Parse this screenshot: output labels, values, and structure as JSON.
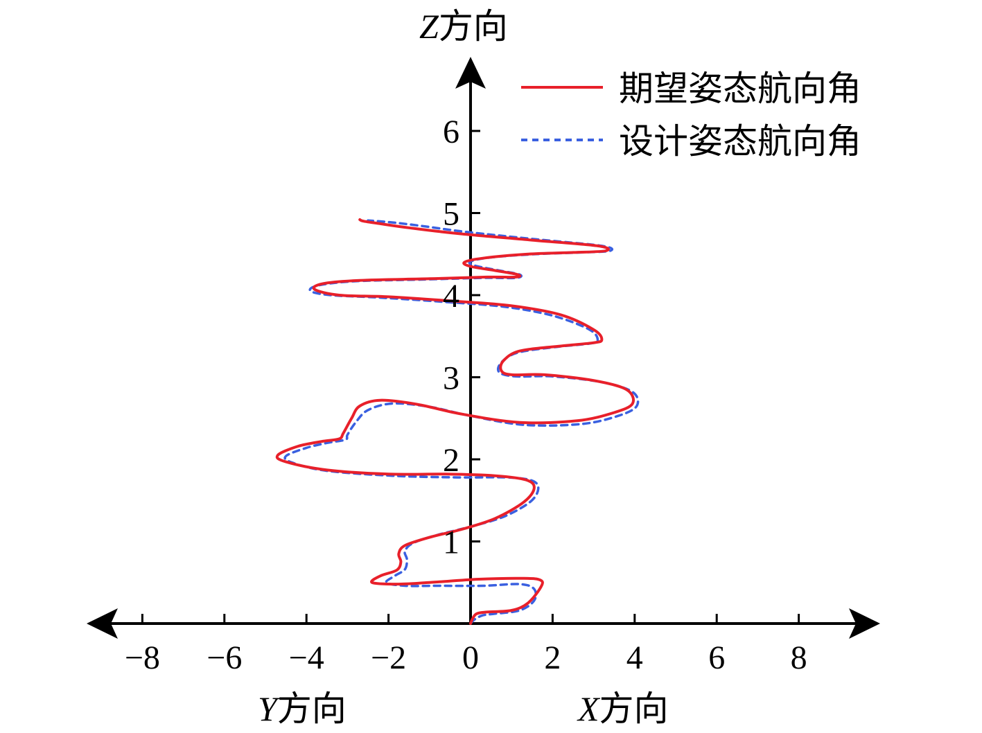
{
  "chart_data": {
    "type": "line",
    "xlim": [
      -9,
      9
    ],
    "ylim": [
      0,
      6.5
    ],
    "x_ticks": [
      -8,
      -6,
      -4,
      -2,
      0,
      2,
      4,
      6,
      8
    ],
    "x_tick_labels": [
      "−8",
      "−6",
      "−4",
      "−2",
      "0",
      "2",
      "4",
      "6",
      "8"
    ],
    "y_ticks": [
      1,
      2,
      3,
      4,
      5,
      6
    ],
    "y_tick_labels": [
      "1",
      "2",
      "3",
      "4",
      "5",
      "6"
    ],
    "z_axis_label": {
      "var": "Z",
      "text": "方向"
    },
    "left_axis_label": {
      "var": "Y",
      "text": "方向"
    },
    "right_axis_label": {
      "var": "X",
      "text": "方向"
    },
    "legend": {
      "placement": "top-right"
    },
    "grid": false,
    "series": [
      {
        "name": "期望姿态航向角",
        "color": "#e8202a",
        "dash": "solid",
        "points": [
          [
            0.0,
            0.0
          ],
          [
            0.05,
            0.06
          ],
          [
            0.15,
            0.12
          ],
          [
            0.4,
            0.14
          ],
          [
            1.0,
            0.16
          ],
          [
            1.4,
            0.25
          ],
          [
            1.72,
            0.45
          ],
          [
            1.7,
            0.53
          ],
          [
            1.3,
            0.55
          ],
          [
            0.2,
            0.54
          ],
          [
            -1.0,
            0.5
          ],
          [
            -1.8,
            0.48
          ],
          [
            -2.4,
            0.5
          ],
          [
            -2.2,
            0.58
          ],
          [
            -1.8,
            0.65
          ],
          [
            -1.7,
            0.75
          ],
          [
            -1.75,
            0.85
          ],
          [
            -1.6,
            0.95
          ],
          [
            -1.0,
            1.05
          ],
          [
            -0.2,
            1.15
          ],
          [
            0.6,
            1.28
          ],
          [
            1.3,
            1.48
          ],
          [
            1.55,
            1.65
          ],
          [
            1.35,
            1.75
          ],
          [
            0.6,
            1.8
          ],
          [
            -0.6,
            1.82
          ],
          [
            -2.0,
            1.82
          ],
          [
            -3.5,
            1.87
          ],
          [
            -4.5,
            1.97
          ],
          [
            -4.7,
            2.05
          ],
          [
            -4.2,
            2.16
          ],
          [
            -3.6,
            2.22
          ],
          [
            -3.2,
            2.25
          ],
          [
            -3.1,
            2.32
          ],
          [
            -2.9,
            2.5
          ],
          [
            -2.7,
            2.65
          ],
          [
            -2.2,
            2.72
          ],
          [
            -1.3,
            2.67
          ],
          [
            -0.2,
            2.55
          ],
          [
            1.2,
            2.45
          ],
          [
            2.6,
            2.47
          ],
          [
            3.5,
            2.57
          ],
          [
            3.95,
            2.68
          ],
          [
            3.8,
            2.85
          ],
          [
            3.0,
            2.96
          ],
          [
            1.8,
            3.03
          ],
          [
            1.0,
            3.03
          ],
          [
            0.75,
            3.08
          ],
          [
            0.8,
            3.2
          ],
          [
            1.2,
            3.32
          ],
          [
            2.2,
            3.38
          ],
          [
            3.0,
            3.42
          ],
          [
            3.2,
            3.46
          ],
          [
            3.0,
            3.58
          ],
          [
            2.2,
            3.76
          ],
          [
            1.0,
            3.87
          ],
          [
            -0.5,
            3.93
          ],
          [
            -2.0,
            3.98
          ],
          [
            -3.2,
            4.0
          ],
          [
            -3.8,
            4.07
          ],
          [
            -3.6,
            4.14
          ],
          [
            -2.7,
            4.18
          ],
          [
            -1.0,
            4.2
          ],
          [
            0.4,
            4.22
          ],
          [
            1.1,
            4.22
          ],
          [
            1.15,
            4.25
          ],
          [
            0.6,
            4.3
          ],
          [
            0.0,
            4.35
          ],
          [
            -0.15,
            4.4
          ],
          [
            0.3,
            4.45
          ],
          [
            1.4,
            4.5
          ],
          [
            2.5,
            4.52
          ],
          [
            3.3,
            4.54
          ],
          [
            3.1,
            4.6
          ],
          [
            1.5,
            4.67
          ],
          [
            -0.3,
            4.75
          ],
          [
            -1.5,
            4.82
          ],
          [
            -2.2,
            4.87
          ],
          [
            -2.6,
            4.9
          ],
          [
            -2.7,
            4.92
          ]
        ]
      },
      {
        "name": "设计姿态航向角",
        "color": "#3a60e0",
        "dash": "dotted",
        "points": [
          [
            0.0,
            0.0
          ],
          [
            0.1,
            0.05
          ],
          [
            0.3,
            0.1
          ],
          [
            0.6,
            0.12
          ],
          [
            1.2,
            0.16
          ],
          [
            1.55,
            0.28
          ],
          [
            1.55,
            0.42
          ],
          [
            1.2,
            0.48
          ],
          [
            0.3,
            0.46
          ],
          [
            -0.8,
            0.46
          ],
          [
            -1.6,
            0.46
          ],
          [
            -2.05,
            0.5
          ],
          [
            -1.85,
            0.58
          ],
          [
            -1.6,
            0.66
          ],
          [
            -1.55,
            0.78
          ],
          [
            -1.6,
            0.88
          ],
          [
            -1.4,
            0.98
          ],
          [
            -0.8,
            1.08
          ],
          [
            0.0,
            1.18
          ],
          [
            0.8,
            1.3
          ],
          [
            1.45,
            1.48
          ],
          [
            1.65,
            1.64
          ],
          [
            1.5,
            1.74
          ],
          [
            0.9,
            1.78
          ],
          [
            -0.3,
            1.78
          ],
          [
            -1.9,
            1.8
          ],
          [
            -3.5,
            1.86
          ],
          [
            -4.35,
            1.96
          ],
          [
            -4.5,
            2.04
          ],
          [
            -4.0,
            2.14
          ],
          [
            -3.5,
            2.2
          ],
          [
            -3.05,
            2.24
          ],
          [
            -3.0,
            2.3
          ],
          [
            -2.8,
            2.45
          ],
          [
            -2.5,
            2.6
          ],
          [
            -1.9,
            2.68
          ],
          [
            -1.0,
            2.64
          ],
          [
            0.0,
            2.53
          ],
          [
            1.3,
            2.42
          ],
          [
            2.7,
            2.43
          ],
          [
            3.6,
            2.53
          ],
          [
            4.05,
            2.65
          ],
          [
            3.95,
            2.82
          ],
          [
            3.2,
            2.94
          ],
          [
            2.0,
            3.01
          ],
          [
            1.1,
            3.01
          ],
          [
            0.7,
            3.06
          ],
          [
            0.75,
            3.18
          ],
          [
            1.15,
            3.3
          ],
          [
            2.1,
            3.37
          ],
          [
            2.9,
            3.41
          ],
          [
            3.1,
            3.45
          ],
          [
            2.9,
            3.58
          ],
          [
            2.0,
            3.75
          ],
          [
            0.8,
            3.86
          ],
          [
            -0.7,
            3.92
          ],
          [
            -2.2,
            3.97
          ],
          [
            -3.4,
            4.0
          ],
          [
            -3.9,
            4.05
          ],
          [
            -3.7,
            4.12
          ],
          [
            -2.8,
            4.17
          ],
          [
            -1.2,
            4.19
          ],
          [
            0.3,
            4.21
          ],
          [
            1.1,
            4.21
          ],
          [
            1.2,
            4.25
          ],
          [
            0.7,
            4.3
          ],
          [
            0.1,
            4.36
          ],
          [
            0.0,
            4.41
          ],
          [
            0.5,
            4.46
          ],
          [
            1.6,
            4.5
          ],
          [
            2.7,
            4.52
          ],
          [
            3.4,
            4.54
          ],
          [
            3.2,
            4.6
          ],
          [
            1.6,
            4.68
          ],
          [
            -0.1,
            4.77
          ],
          [
            -1.3,
            4.85
          ],
          [
            -2.0,
            4.89
          ],
          [
            -2.5,
            4.91
          ]
        ]
      }
    ]
  }
}
